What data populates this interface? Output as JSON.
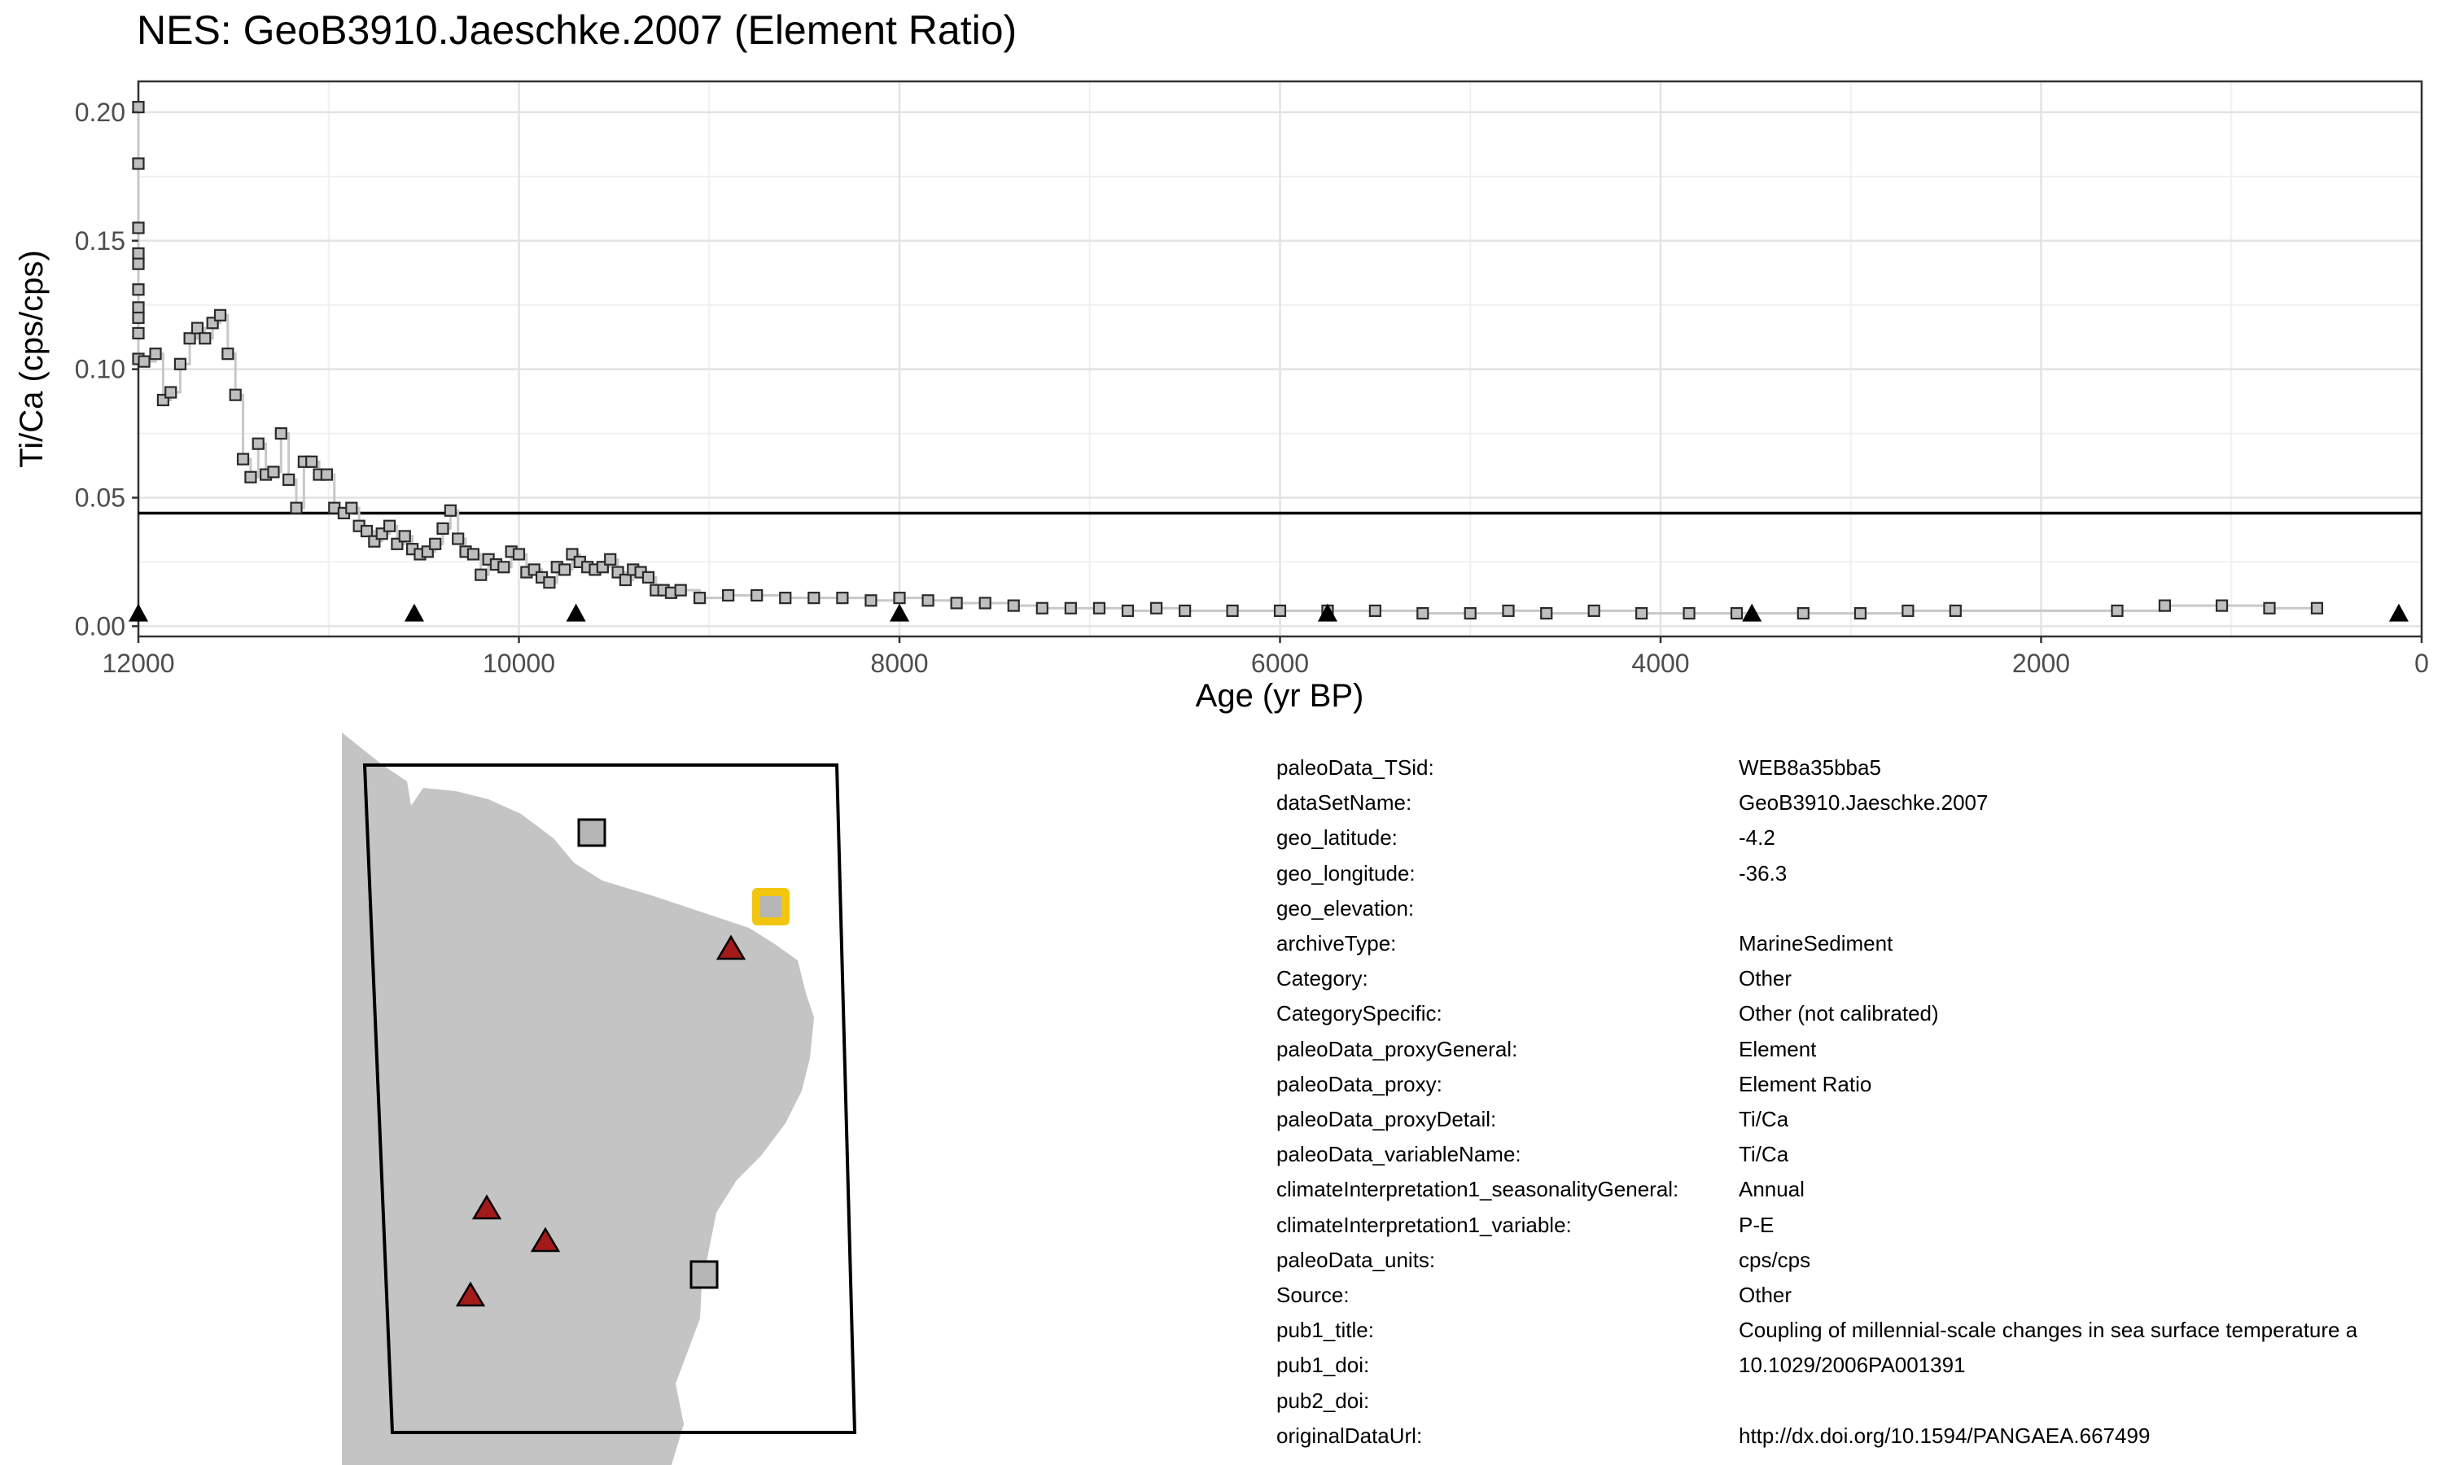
{
  "title": "NES: GeoB3910.Jaeschke.2007 (Element Ratio)",
  "chart_data": {
    "type": "line",
    "title": "NES: GeoB3910.Jaeschke.2007 (Element Ratio)",
    "xlabel": "Age (yr BP)",
    "ylabel": "Ti/Ca (cps/cps)",
    "xlim": [
      12000,
      0
    ],
    "ylim": [
      -0.004,
      0.212
    ],
    "x_reversed": true,
    "x_ticks": [
      "12000",
      "10000",
      "8000",
      "6000",
      "4000",
      "2000",
      "0"
    ],
    "y_ticks": [
      "0.00",
      "0.05",
      "0.10",
      "0.15",
      "0.20"
    ],
    "grid": true,
    "legend": "none",
    "reference_line": {
      "y": 0.044,
      "color": "#000000"
    },
    "series": [
      {
        "marker": "square",
        "marker_color": "#bfbfbf",
        "line_color": "#c8c8c8",
        "style": "step",
        "x": [
          12000,
          12000,
          12000,
          12000,
          12000,
          12000,
          12000,
          12000,
          12000,
          12000,
          11970,
          11910,
          11870,
          11830,
          11780,
          11730,
          11690,
          11650,
          11610,
          11570,
          11530,
          11490,
          11450,
          11410,
          11370,
          11330,
          11290,
          11250,
          11210,
          11170,
          11130,
          11090,
          11050,
          11010,
          10970,
          10920,
          10880,
          10840,
          10800,
          10760,
          10720,
          10680,
          10640,
          10600,
          10560,
          10520,
          10480,
          10440,
          10400,
          10360,
          10320,
          10280,
          10240,
          10200,
          10160,
          10120,
          10080,
          10040,
          10000,
          9960,
          9920,
          9880,
          9840,
          9800,
          9760,
          9720,
          9680,
          9640,
          9600,
          9560,
          9520,
          9480,
          9440,
          9400,
          9360,
          9320,
          9280,
          9240,
          9200,
          9150,
          9050,
          8900,
          8750,
          8600,
          8450,
          8300,
          8150,
          8000,
          7850,
          7700,
          7550,
          7400,
          7250,
          7100,
          6950,
          6800,
          6650,
          6500,
          6250,
          6000,
          5750,
          5500,
          5250,
          5000,
          4800,
          4600,
          4350,
          4100,
          3850,
          3600,
          3250,
          2950,
          2700,
          2450,
          1600,
          1350,
          1050,
          800,
          550
        ],
        "y": [
          0.202,
          0.18,
          0.155,
          0.145,
          0.141,
          0.131,
          0.124,
          0.12,
          0.114,
          0.104,
          0.103,
          0.106,
          0.088,
          0.091,
          0.102,
          0.112,
          0.116,
          0.112,
          0.118,
          0.121,
          0.106,
          0.09,
          0.065,
          0.058,
          0.071,
          0.059,
          0.06,
          0.075,
          0.057,
          0.046,
          0.064,
          0.064,
          0.059,
          0.059,
          0.046,
          0.044,
          0.046,
          0.039,
          0.037,
          0.033,
          0.036,
          0.039,
          0.032,
          0.035,
          0.03,
          0.028,
          0.029,
          0.032,
          0.038,
          0.045,
          0.034,
          0.029,
          0.028,
          0.02,
          0.026,
          0.024,
          0.023,
          0.029,
          0.028,
          0.021,
          0.022,
          0.019,
          0.017,
          0.023,
          0.022,
          0.028,
          0.025,
          0.023,
          0.022,
          0.023,
          0.026,
          0.021,
          0.018,
          0.022,
          0.021,
          0.019,
          0.014,
          0.014,
          0.013,
          0.014,
          0.011,
          0.012,
          0.012,
          0.011,
          0.011,
          0.011,
          0.01,
          0.011,
          0.01,
          0.009,
          0.009,
          0.008,
          0.007,
          0.007,
          0.007,
          0.006,
          0.007,
          0.006,
          0.006,
          0.006,
          0.006,
          0.006,
          0.005,
          0.005,
          0.006,
          0.005,
          0.006,
          0.005,
          0.005,
          0.005,
          0.005,
          0.005,
          0.006,
          0.006,
          0.006,
          0.008,
          0.008,
          0.007,
          0.007
        ]
      },
      {
        "marker": "triangle",
        "marker_color": "#000000",
        "x": [
          12000,
          10550,
          9700,
          8000,
          5750,
          3520,
          120
        ],
        "y": [
          0.005,
          0.005,
          0.005,
          0.005,
          0.005,
          0.005,
          0.005
        ]
      }
    ]
  },
  "map": {
    "land_color": "#c4c4c4",
    "sites_square": [
      "GeoB3910 site (highlighted)",
      "site",
      "site"
    ],
    "highlight_color": "#f2c50f",
    "triangle_color": "#a31a1a"
  },
  "metadata": [
    {
      "key": "paleoData_TSid:",
      "value": "WEB8a35bba5"
    },
    {
      "key": "dataSetName:",
      "value": "GeoB3910.Jaeschke.2007"
    },
    {
      "key": "geo_latitude:",
      "value": "-4.2"
    },
    {
      "key": "geo_longitude:",
      "value": "-36.3"
    },
    {
      "key": "geo_elevation:",
      "value": ""
    },
    {
      "key": "archiveType:",
      "value": "MarineSediment"
    },
    {
      "key": "Category:",
      "value": "Other"
    },
    {
      "key": "CategorySpecific:",
      "value": "Other (not calibrated)"
    },
    {
      "key": "paleoData_proxyGeneral:",
      "value": "Element"
    },
    {
      "key": "paleoData_proxy:",
      "value": "Element Ratio"
    },
    {
      "key": "paleoData_proxyDetail:",
      "value": "Ti/Ca"
    },
    {
      "key": "paleoData_variableName:",
      "value": "Ti/Ca"
    },
    {
      "key": "climateInterpretation1_seasonalityGeneral:",
      "value": "Annual"
    },
    {
      "key": "climateInterpretation1_variable:",
      "value": "P-E"
    },
    {
      "key": "paleoData_units:",
      "value": "cps/cps"
    },
    {
      "key": "Source:",
      "value": "Other"
    },
    {
      "key": "pub1_title:",
      "value": "Coupling of millennial-scale changes in sea surface temperature a"
    },
    {
      "key": "pub1_doi:",
      "value": "10.1029/2006PA001391"
    },
    {
      "key": "pub2_doi:",
      "value": ""
    },
    {
      "key": "originalDataUrl:",
      "value": "http://dx.doi.org/10.1594/PANGAEA.667499"
    }
  ]
}
